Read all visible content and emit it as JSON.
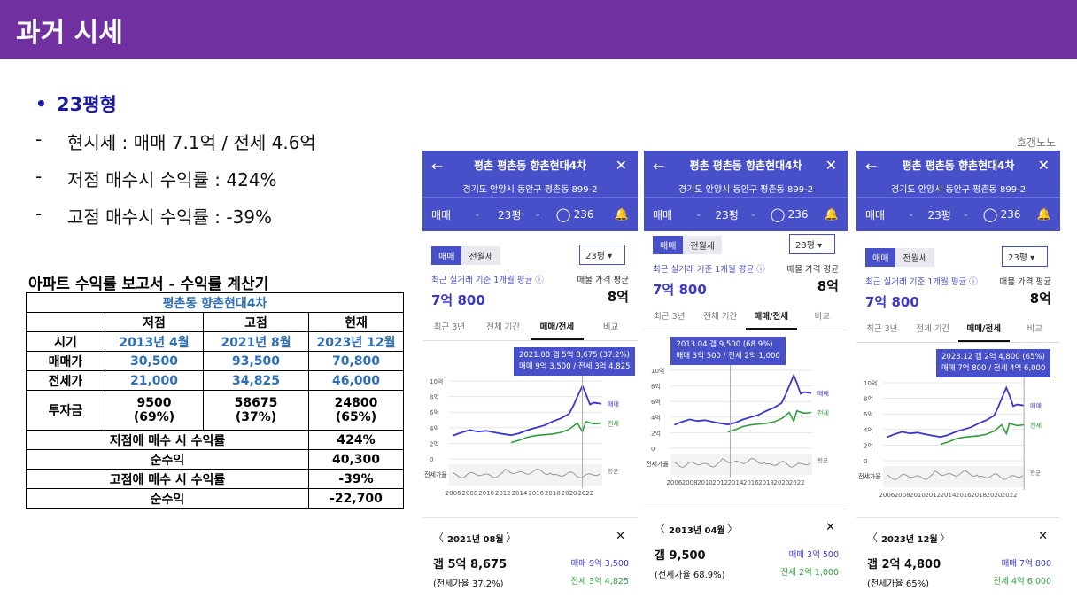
{
  "slide": {
    "title": "과거 시세",
    "bullet_heading": "23평형",
    "lines": [
      "현시세 : 매매 7.1억 / 전세 4.6억",
      "저점 매수시 수익률 : 424%",
      "고점 매수시 수익률 : -39%"
    ],
    "watermark": "호갱노노",
    "colors": {
      "header": "#7030a0",
      "heading": "#1a1aa6",
      "app": "#4750c8",
      "sale": "#3b37c9",
      "lease": "#2e9e3a"
    }
  },
  "report": {
    "title": "아파트 수익률 보고서 - 수익률 계산기",
    "apt_name": "평촌동 향촌현대4차",
    "col_headers": [
      "저점",
      "고점",
      "현재"
    ],
    "rows": [
      {
        "label": "시기",
        "values": [
          "2013년 4월",
          "2021년 8월",
          "2023년 12월"
        ]
      },
      {
        "label": "매매가",
        "values": [
          "30,500",
          "93,500",
          "70,800"
        ]
      },
      {
        "label": "전세가",
        "values": [
          "21,000",
          "34,825",
          "46,000"
        ]
      },
      {
        "label": "투자금",
        "values": [
          "9500",
          "58675",
          "24800"
        ],
        "sub": [
          "(69%)",
          "(37%)",
          "(65%)"
        ]
      }
    ],
    "summary": [
      {
        "label": "저점에 매수 시 수익률",
        "value": "424%"
      },
      {
        "label": "순수익",
        "value": "40,300"
      },
      {
        "label": "고점에 매수 시 수익률",
        "value": "-39%"
      },
      {
        "label": "순수익",
        "value": "-22,700"
      }
    ]
  },
  "panels": [
    {
      "apt": "평촌 평촌동 향촌현대4차",
      "address": "경기도 안양시 동안구 평촌동 899-2",
      "deal_type": "매매",
      "size": "23평",
      "comments": "236",
      "toggle": [
        "매매",
        "전월세"
      ],
      "size_select": "23평",
      "avg_label": "최근 실거래 기준 1개월 평균",
      "avg_value": "7억 800",
      "listing_label": "매물 가격 평균",
      "listing_value": "8억",
      "tabs": [
        "최근 3년",
        "전체 기간",
        "매매/전세",
        "비교"
      ],
      "tooltip": [
        "2021.08 갭 5억 8,675 (37.2%)",
        "매매 9억 3,500 / 전세 3억 4,825"
      ],
      "date": "2021년 08월",
      "gap": "갭 5억 8,675",
      "ratio": "(전세가율 37.2%)",
      "sale_label": "매매",
      "sale_value": "9억 3,500",
      "lease_label": "전세",
      "lease_value": "3억 4,825",
      "marker_year": 2021.6
    },
    {
      "apt": "평촌 평촌동 향촌현대4차",
      "address": "경기도 안양시 동안구 평촌동 899-2",
      "deal_type": "매매",
      "size": "23평",
      "comments": "236",
      "toggle": [
        "매매",
        "전월세"
      ],
      "size_select": "23평",
      "avg_label": "최근 실거래 기준 1개월 평균",
      "avg_value": "7억 800",
      "listing_label": "매물 가격 평균",
      "listing_value": "8억",
      "tabs": [
        "최근 3년",
        "전체 기간",
        "매매/전세",
        "비교"
      ],
      "tooltip": [
        "2013.04 갭 9,500 (68.9%)",
        "매매 3억 500 / 전세 2억 1,000"
      ],
      "date": "2013년 04월",
      "gap": "갭 9,500",
      "ratio": "(전세가율 68.9%)",
      "sale_label": "매매",
      "sale_value": "3억 500",
      "lease_label": "전세",
      "lease_value": "2억 1,000",
      "marker_year": 2013.3
    },
    {
      "apt": "평촌 평촌동 향촌현대4차",
      "address": "경기도 안양시 동안구 평촌동 899-2",
      "deal_type": "매매",
      "size": "23평",
      "comments": "236",
      "toggle": [
        "매매",
        "전월세"
      ],
      "size_select": "23평",
      "avg_label": "최근 실거래 기준 1개월 평균",
      "avg_value": "7억 800",
      "listing_label": "매물 가격 평균",
      "listing_value": "8억",
      "tabs": [
        "최근 3년",
        "전체 기간",
        "매매/전세",
        "비교"
      ],
      "tooltip": [
        "2023.12 갭 2억 4,800 (65%)",
        "매매 7억 800 / 전세 4억 6,000"
      ],
      "date": "2023년 12월",
      "gap": "갭 2억 4,800",
      "ratio": "(전세가율 65%)",
      "sale_label": "매매",
      "sale_value": "7억 800",
      "lease_label": "전세",
      "lease_value": "4억 6,000",
      "marker_year": 2023.9
    }
  ],
  "chart_data": [
    {
      "type": "line",
      "x_ticks": [
        "2006",
        "2008",
        "2010",
        "2012",
        "2014",
        "2016",
        "2018",
        "2020",
        "2022"
      ],
      "y_ticks": [
        "10억",
        "8억",
        "6억",
        "4억",
        "2억",
        "0"
      ],
      "ylim": [
        0,
        10
      ],
      "series": [
        {
          "name": "매매",
          "x": [
            2006,
            2007,
            2008,
            2009,
            2010,
            2011,
            2012,
            2013,
            2014,
            2015,
            2016,
            2017,
            2018,
            2019,
            2020,
            2020.5,
            2021,
            2021.6,
            2022,
            2022.5,
            2023,
            2023.9
          ],
          "values": [
            3.0,
            3.4,
            3.7,
            3.5,
            3.6,
            3.4,
            3.2,
            3.05,
            3.3,
            3.7,
            4.0,
            4.3,
            4.8,
            5.2,
            5.8,
            6.8,
            8.0,
            9.35,
            8.4,
            7.0,
            7.2,
            7.08
          ]
        },
        {
          "name": "전세",
          "x": [
            2013,
            2014,
            2015,
            2016,
            2017,
            2018,
            2019,
            2020,
            2021,
            2021.6,
            2022,
            2023,
            2023.9
          ],
          "values": [
            2.1,
            2.4,
            2.8,
            3.0,
            3.1,
            3.2,
            3.4,
            3.8,
            4.6,
            3.48,
            4.8,
            4.5,
            4.6
          ]
        }
      ],
      "bottom_label": "전세가율",
      "bottom_right_label": "평균"
    }
  ]
}
